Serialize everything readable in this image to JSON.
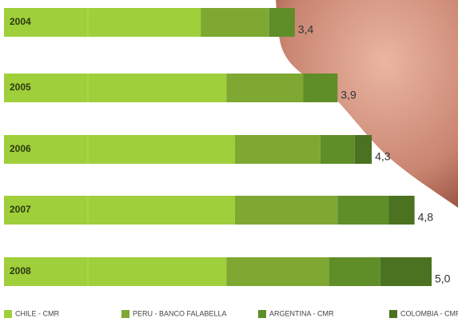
{
  "chart_data": {
    "type": "stacked-bar-horizontal",
    "categories": [
      "2004",
      "2005",
      "2006",
      "2007",
      "2008"
    ],
    "series": [
      {
        "name": "CHILE - CMR",
        "color": "#9fcf3a",
        "values": [
          2.3,
          2.6,
          2.7,
          2.7,
          2.6
        ]
      },
      {
        "name": "PERU - BANCO FALABELLA",
        "color": "#7ea832",
        "values": [
          0.8,
          0.9,
          1.0,
          1.2,
          1.2
        ]
      },
      {
        "name": "ARGENTINA - CMR",
        "color": "#5f8d28",
        "values": [
          0.3,
          0.4,
          0.4,
          0.6,
          0.6
        ]
      },
      {
        "name": "COLOMBIA - CMR",
        "color": "#4a7220",
        "values": [
          0,
          0,
          0.2,
          0.3,
          0.6
        ]
      }
    ],
    "totals": [
      3.4,
      3.9,
      4.3,
      4.8,
      5.0
    ],
    "total_labels": [
      "3,4",
      "3,9",
      "4,3",
      "4,8",
      "5,0"
    ]
  }
}
